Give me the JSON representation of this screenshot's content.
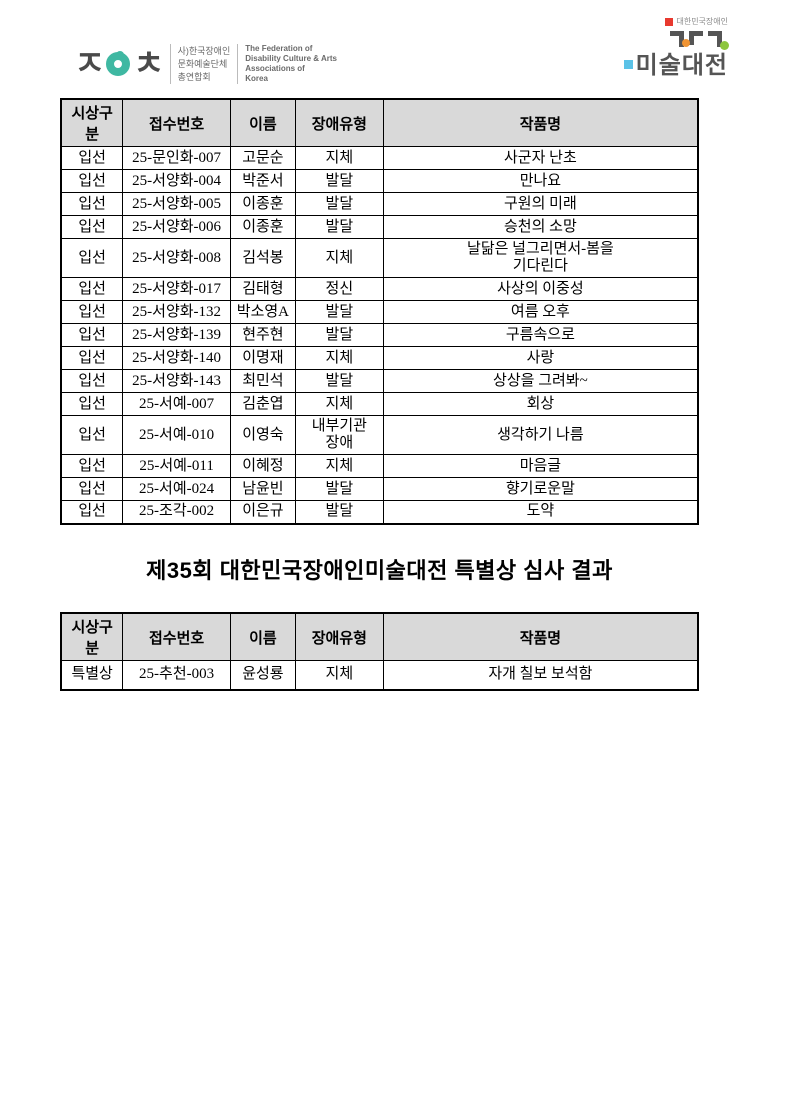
{
  "logos": {
    "left": {
      "korean_text": "사)한국장애인\n문화예술단체\n총연합회",
      "english_text": "The Federation of\nDisability Culture & Arts\nAssociations of\nKorea",
      "mark_jamo_1": "ㅈ",
      "mark_jamo_2": "ㅊ"
    },
    "right": {
      "top_text": "대한민국장애인",
      "main_text": "미술대전"
    }
  },
  "heading": {
    "title": "제35회 대한민국장애인미술대전 특별상 심사 결과"
  },
  "tables": {
    "columns": [
      "시상구분",
      "접수번호",
      "이름",
      "장애유형",
      "작품명"
    ],
    "main": {
      "rows": [
        [
          "입선",
          "25-문인화-007",
          "고문순",
          "지체",
          "사군자 난초"
        ],
        [
          "입선",
          "25-서양화-004",
          "박준서",
          "발달",
          "만나요"
        ],
        [
          "입선",
          "25-서양화-005",
          "이종훈",
          "발달",
          "구원의 미래"
        ],
        [
          "입선",
          "25-서양화-006",
          "이종훈",
          "발달",
          "승천의 소망"
        ],
        [
          "입선",
          "25-서양화-008",
          "김석봉",
          "지체",
          "날닮은 널그리면서-봄을\n기다린다"
        ],
        [
          "입선",
          "25-서양화-017",
          "김태형",
          "정신",
          "사상의 이중성"
        ],
        [
          "입선",
          "25-서양화-132",
          "박소영A",
          "발달",
          "여름 오후"
        ],
        [
          "입선",
          "25-서양화-139",
          "현주현",
          "발달",
          "구름속으로"
        ],
        [
          "입선",
          "25-서양화-140",
          "이명재",
          "지체",
          "사랑"
        ],
        [
          "입선",
          "25-서양화-143",
          "최민석",
          "발달",
          "상상을 그려봐~"
        ],
        [
          "입선",
          "25-서예-007",
          "김춘엽",
          "지체",
          "회상"
        ],
        [
          "입선",
          "25-서예-010",
          "이영숙",
          "내부기관\n장애",
          "생각하기 나름"
        ],
        [
          "입선",
          "25-서예-011",
          "이혜정",
          "지체",
          "마음글"
        ],
        [
          "입선",
          "25-서예-024",
          "남윤빈",
          "발달",
          "향기로운말"
        ],
        [
          "입선",
          "25-조각-002",
          "이은규",
          "발달",
          "도약"
        ]
      ]
    },
    "special": {
      "rows": [
        [
          "특별상",
          "25-추천-003",
          "윤성룡",
          "지체",
          "자개 칠보 보석함"
        ]
      ]
    }
  },
  "colors": {
    "header_bg": "#d9d9d9",
    "border": "#000000",
    "logo_teal": "#3fb8a2",
    "logo_dark": "#4a4a4a",
    "logo_red": "#e8392f",
    "logo_orange": "#f09433",
    "logo_green": "#8dc63f",
    "logo_blue": "#5bc2e7"
  }
}
